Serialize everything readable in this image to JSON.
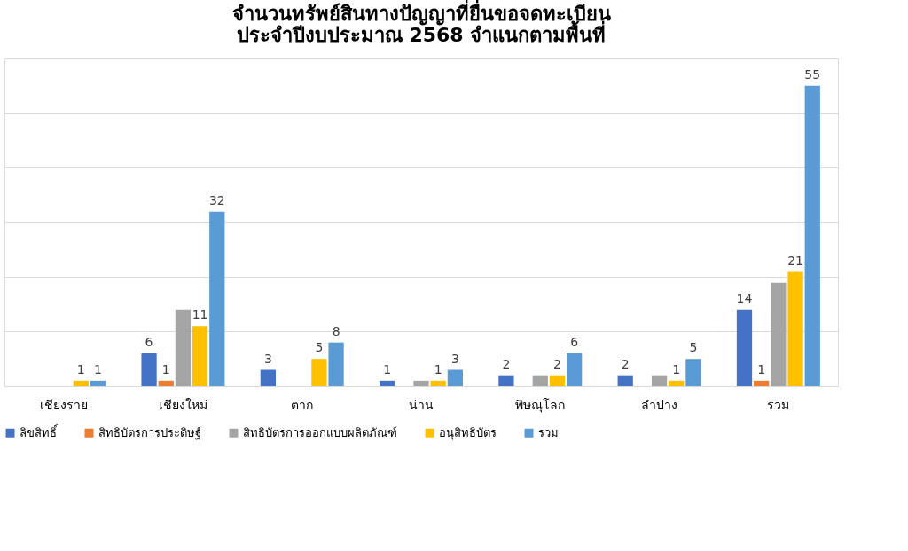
{
  "chart_data": {
    "type": "bar",
    "title": [
      "จำนวนทรัพย์สินทางปัญญาที่ยื่นขอจดทะเบียน",
      "ประจำปีงบประมาณ 2568 จำแนกตามพื้นที่"
    ],
    "categories": [
      "เชียงราย",
      "เชียงใหม่",
      "ตาก",
      "น่าน",
      "พิษณุโลก",
      "ลำปาง",
      "รวม"
    ],
    "series": [
      {
        "name": "ลิขสิทธิ์",
        "color": "#4472c4",
        "values": [
          null,
          6,
          3,
          1,
          2,
          2,
          14
        ],
        "value_labels": [
          null,
          "6",
          "3",
          "1",
          "2",
          "2",
          "14"
        ]
      },
      {
        "name": "สิทธิบัตรการประดิษฐ์",
        "color": "#ed7d31",
        "values": [
          null,
          1,
          null,
          null,
          null,
          null,
          1
        ],
        "value_labels": [
          null,
          "1",
          null,
          null,
          null,
          null,
          "1"
        ]
      },
      {
        "name": "สิทธิบัตรการออกแบบผลิตภัณฑ์",
        "color": "#a5a5a5",
        "values": [
          null,
          14,
          null,
          1,
          2,
          2,
          19
        ],
        "value_labels": [
          null,
          null,
          null,
          null,
          null,
          null,
          null
        ]
      },
      {
        "name": "อนุสิทธิบัตร",
        "color": "#ffc000",
        "values": [
          1,
          11,
          5,
          1,
          2,
          1,
          21
        ],
        "value_labels": [
          "1",
          "11",
          "5",
          "1",
          "2",
          "1",
          "21"
        ]
      },
      {
        "name": "รวม",
        "color": "#5b9bd5",
        "values": [
          1,
          32,
          8,
          3,
          6,
          5,
          55
        ],
        "value_labels": [
          "1",
          "32",
          "8",
          "3",
          "6",
          "5",
          "55"
        ]
      }
    ],
    "ylim": [
      0,
      60
    ],
    "yticks": [
      {
        "value": 0,
        "label": null
      },
      {
        "value": 10,
        "label": null
      },
      {
        "value": 20,
        "label": null
      },
      {
        "value": 30,
        "label": null
      },
      {
        "value": 40,
        "label": null
      },
      {
        "value": 50,
        "label": null
      },
      {
        "value": 60,
        "label": null
      }
    ],
    "grid": "y",
    "legend": "bottom",
    "tick_labels": "x"
  }
}
